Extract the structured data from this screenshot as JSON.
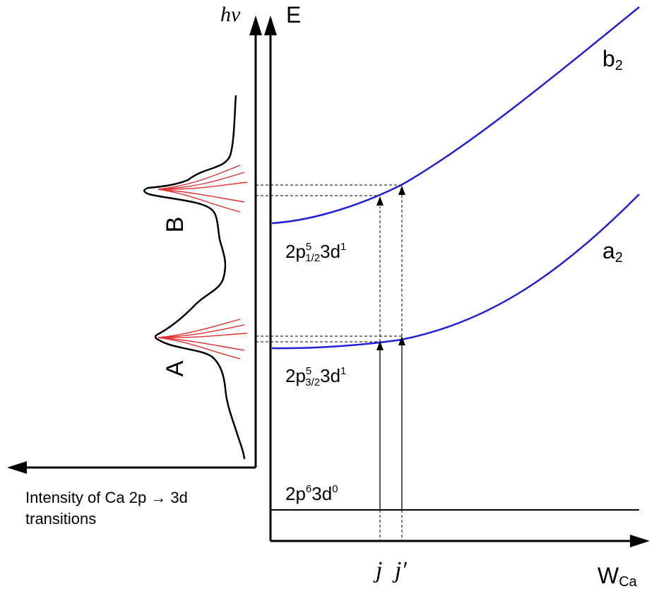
{
  "colors": {
    "background": "#ffffff",
    "axis": "#000000",
    "energy_curve": "#1f1fdc",
    "sub_peak": "#e03030",
    "spectrum": "#000000"
  },
  "left_axis": {
    "label_main": "hv",
    "caption_line1": "Intensity of Ca 2p → 3d",
    "caption_line2": "transitions"
  },
  "right_axis": {
    "y_label": "E",
    "x_label_main": "W",
    "x_label_sub": "Ca"
  },
  "peaks": {
    "upper": "B",
    "lower": "A"
  },
  "curves": {
    "upper": {
      "name_main": "b",
      "name_sub": "2"
    },
    "lower": {
      "name_main": "a",
      "name_sub": "2"
    }
  },
  "states": {
    "upper": {
      "p1": "2p",
      "sup1": "5",
      "sub1": "1/2",
      "p2": "3d",
      "sup2": "1"
    },
    "lower": {
      "p1": "2p",
      "sup1": "5",
      "sub1": "3/2",
      "p2": "3d",
      "sup2": "1"
    },
    "ground": {
      "p1": "2p",
      "sup1": "6",
      "p2": "3d",
      "sup2": "0"
    }
  },
  "markers": {
    "j": "j",
    "j_prime": "j′"
  }
}
